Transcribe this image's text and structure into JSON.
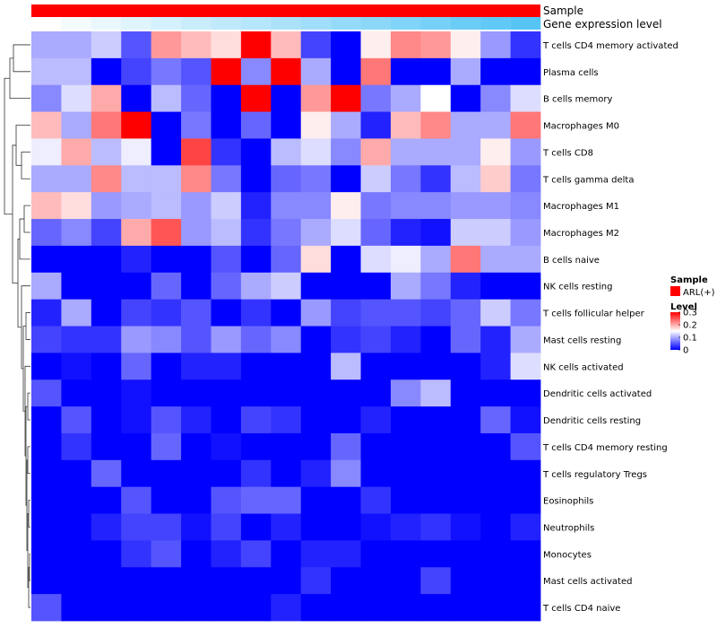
{
  "chart_data": {
    "type": "heatmap",
    "title": "",
    "annotation_tracks": [
      {
        "name": "Sample",
        "legend_title": "Sample",
        "legend_entry": "ARL(+)",
        "color": "#FF0000"
      },
      {
        "name": "Gene expression level",
        "color_low": "#FFFFFF",
        "color_high": "#56C5F5"
      }
    ],
    "color_legend": {
      "title": "Level",
      "ticks": [
        "0.3",
        "0.2",
        "0.1",
        "0"
      ],
      "range": [
        0,
        0.3
      ],
      "colors": {
        "low": "#0000FF",
        "mid": "#FFFFFF",
        "high": "#FF0000"
      }
    },
    "rows": [
      "T cells CD4 memory activated",
      "Plasma cells",
      "B cells memory",
      "Macrophages M0",
      "T cells CD8",
      "T cells gamma delta",
      "Macrophages M1",
      "Macrophages M2",
      "B cells naive",
      "NK cells resting",
      "T cells follicular helper",
      "Mast cells resting",
      "NK cells activated",
      "Dendritic cells activated",
      "Dendritic cells resting",
      "T cells CD4 memory resting",
      "T cells regulatory  Tregs",
      "Eosinophils",
      "Neutrophils",
      "Monocytes",
      "Mast cells activated",
      "T cells CD4 naive"
    ],
    "n_columns": 17,
    "values": [
      [
        0.1,
        0.1,
        0.12,
        0.05,
        0.21,
        0.19,
        0.17,
        0.3,
        0.19,
        0.04,
        0.0,
        0.16,
        0.22,
        0.21,
        0.16,
        0.09,
        0.03
      ],
      [
        0.11,
        0.11,
        0.0,
        0.04,
        0.07,
        0.05,
        0.3,
        0.08,
        0.3,
        0.1,
        0.0,
        0.23,
        0.0,
        0.0,
        0.1,
        0.0,
        0.0
      ],
      [
        0.08,
        0.13,
        0.2,
        0.0,
        0.11,
        0.06,
        0.0,
        0.3,
        0.0,
        0.21,
        0.3,
        0.07,
        0.1,
        0.15,
        0.0,
        0.08,
        0.13
      ],
      [
        0.19,
        0.1,
        0.23,
        0.3,
        0.0,
        0.07,
        0.0,
        0.06,
        0.0,
        0.16,
        0.1,
        0.02,
        0.19,
        0.22,
        0.1,
        0.1,
        0.23
      ],
      [
        0.14,
        0.2,
        0.11,
        0.14,
        0.0,
        0.26,
        0.03,
        0.0,
        0.11,
        0.13,
        0.08,
        0.2,
        0.1,
        0.1,
        0.1,
        0.16,
        0.09
      ],
      [
        0.1,
        0.1,
        0.22,
        0.11,
        0.11,
        0.22,
        0.07,
        0.0,
        0.06,
        0.07,
        0.0,
        0.12,
        0.07,
        0.03,
        0.11,
        0.18,
        0.07
      ],
      [
        0.19,
        0.17,
        0.09,
        0.1,
        0.11,
        0.09,
        0.12,
        0.02,
        0.08,
        0.08,
        0.16,
        0.07,
        0.08,
        0.08,
        0.09,
        0.09,
        0.08
      ],
      [
        0.06,
        0.08,
        0.04,
        0.2,
        0.25,
        0.09,
        0.11,
        0.03,
        0.07,
        0.1,
        0.13,
        0.06,
        0.02,
        0.01,
        0.12,
        0.12,
        0.09
      ],
      [
        0.0,
        0.0,
        0.0,
        0.02,
        0.0,
        0.0,
        0.05,
        0.0,
        0.06,
        0.17,
        0.0,
        0.13,
        0.14,
        0.1,
        0.23,
        0.1,
        0.1
      ],
      [
        0.1,
        0.0,
        0.0,
        0.0,
        0.06,
        0.0,
        0.06,
        0.1,
        0.12,
        0.0,
        0.0,
        0.0,
        0.1,
        0.07,
        0.02,
        0.0,
        0.0
      ],
      [
        0.02,
        0.1,
        0.0,
        0.04,
        0.03,
        0.05,
        0.0,
        0.03,
        0.0,
        0.09,
        0.04,
        0.05,
        0.05,
        0.04,
        0.06,
        0.12,
        0.07
      ],
      [
        0.04,
        0.03,
        0.03,
        0.09,
        0.08,
        0.05,
        0.09,
        0.06,
        0.08,
        0.0,
        0.03,
        0.04,
        0.02,
        0.0,
        0.06,
        0.02,
        0.1
      ],
      [
        0.0,
        0.01,
        0.0,
        0.06,
        0.0,
        0.02,
        0.02,
        0.0,
        0.0,
        0.0,
        0.11,
        0.0,
        0.0,
        0.0,
        0.0,
        0.02,
        0.13
      ],
      [
        0.05,
        0.0,
        0.0,
        0.01,
        0.0,
        0.0,
        0.0,
        0.0,
        0.0,
        0.0,
        0.0,
        0.0,
        0.08,
        0.11,
        0.0,
        0.0,
        0.0
      ],
      [
        0.0,
        0.05,
        0.0,
        0.01,
        0.05,
        0.02,
        0.0,
        0.04,
        0.03,
        0.0,
        0.0,
        0.02,
        0.0,
        0.0,
        0.0,
        0.06,
        0.01
      ],
      [
        0.0,
        0.03,
        0.0,
        0.0,
        0.06,
        0.0,
        0.01,
        0.0,
        0.0,
        0.0,
        0.06,
        0.0,
        0.0,
        0.0,
        0.0,
        0.0,
        0.05
      ],
      [
        0.0,
        0.0,
        0.06,
        0.0,
        0.0,
        0.0,
        0.0,
        0.03,
        0.0,
        0.02,
        0.08,
        0.0,
        0.0,
        0.0,
        0.0,
        0.0,
        0.0
      ],
      [
        0.0,
        0.0,
        0.0,
        0.05,
        0.0,
        0.0,
        0.05,
        0.06,
        0.06,
        0.0,
        0.0,
        0.03,
        0.0,
        0.0,
        0.0,
        0.0,
        0.0
      ],
      [
        0.0,
        0.0,
        0.02,
        0.04,
        0.04,
        0.01,
        0.04,
        0.0,
        0.02,
        0.0,
        0.0,
        0.01,
        0.02,
        0.03,
        0.01,
        0.0,
        0.02
      ],
      [
        0.0,
        0.0,
        0.0,
        0.03,
        0.05,
        0.0,
        0.02,
        0.04,
        0.0,
        0.02,
        0.02,
        0.0,
        0.0,
        0.0,
        0.0,
        0.0,
        0.0
      ],
      [
        0.0,
        0.0,
        0.0,
        0.0,
        0.0,
        0.0,
        0.0,
        0.0,
        0.0,
        0.03,
        0.0,
        0.0,
        0.0,
        0.04,
        0.0,
        0.0,
        0.0
      ],
      [
        0.05,
        0.0,
        0.0,
        0.0,
        0.0,
        0.0,
        0.0,
        0.0,
        0.02,
        0.0,
        0.0,
        0.0,
        0.0,
        0.0,
        0.0,
        0.0,
        0.0
      ]
    ]
  }
}
